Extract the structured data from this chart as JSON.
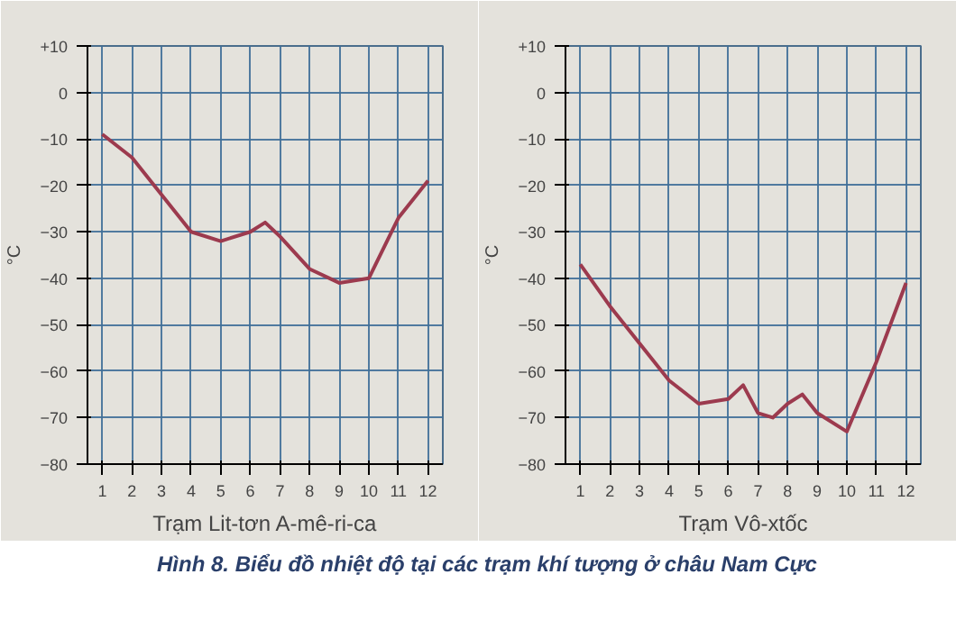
{
  "chart_data": [
    {
      "type": "line",
      "ylabel": "°C",
      "xlabel": "Trạm Lit-tơn A-mê-ri-ca",
      "x": [
        1,
        2,
        3,
        4,
        5,
        6,
        6.5,
        7,
        8,
        9,
        10,
        11,
        12
      ],
      "series": [
        {
          "color": "#9c3a4e",
          "values": [
            -9,
            -14,
            -22,
            -30,
            -32,
            -30,
            -28,
            -31,
            -38,
            -41,
            -40,
            -27,
            -19
          ]
        }
      ],
      "xlim": [
        0.5,
        12.5
      ],
      "xticks": [
        1,
        2,
        3,
        4,
        5,
        6,
        7,
        8,
        9,
        10,
        11,
        12
      ],
      "ylim": [
        -80,
        10
      ],
      "yticks": [
        {
          "value": 10,
          "label": "+10"
        },
        0,
        -10,
        -20,
        -30,
        -40,
        -50,
        -60,
        -70,
        -80
      ],
      "grid": true,
      "line_style": "solid"
    },
    {
      "type": "line",
      "ylabel": "°C",
      "xlabel": "Trạm Vô-xtốc",
      "x": [
        1,
        2,
        3,
        4,
        5,
        6,
        6.5,
        7,
        7.5,
        8,
        8.5,
        9,
        10,
        11,
        12
      ],
      "series": [
        {
          "color": "#9c3a4e",
          "values": [
            -37,
            -46,
            -54,
            -62,
            -67,
            -66,
            -63,
            -69,
            -70,
            -67,
            -65,
            -69,
            -73,
            -58,
            -41
          ]
        }
      ],
      "xlim": [
        0.5,
        12.5
      ],
      "xticks": [
        1,
        2,
        3,
        4,
        5,
        6,
        7,
        8,
        9,
        10,
        11,
        12
      ],
      "ylim": [
        -80,
        10
      ],
      "yticks": [
        {
          "value": 10,
          "label": "+10"
        },
        0,
        -10,
        -20,
        -30,
        -40,
        -50,
        -60,
        -70,
        -80
      ],
      "grid": true,
      "line_style": "solid",
      "annotations": [
        "Hình 8. Biểu đồ nhiệt độ tại các trạm khí tượng ở châu Nam Cực"
      ]
    }
  ]
}
